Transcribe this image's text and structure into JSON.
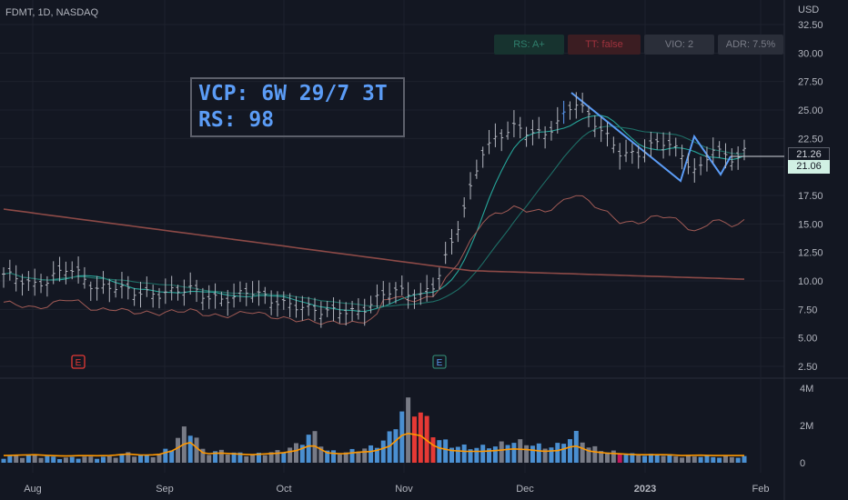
{
  "header": {
    "symbol": "FDMT, 1D, NASDAQ"
  },
  "badges": {
    "rs": "RS: A+",
    "tt": "TT: false",
    "vio": "VIO: 2",
    "adr": "ADR: 7.5%"
  },
  "annotation": {
    "line1": "VCP: 6W 29/7 3T",
    "line2": "RS: 98"
  },
  "price_axis": {
    "unit": "USD",
    "last_price": "21.26",
    "ma_value": "21.06"
  },
  "colors": {
    "background": "#131722",
    "up": "#b2b5be",
    "vol_up": "#2962ff",
    "vol_down": "#787b86",
    "ma_short": "#26a69a",
    "ma_long": "#8d4a47",
    "rs_line": "#a05a55",
    "trendline": "#5b9cf6",
    "volume_ma": "#ff9800",
    "hi_volume": "#e53935",
    "pocket": "#c2185b"
  },
  "chart_data": {
    "type": "candlestick",
    "x_ticks": [
      "Aug",
      "Sep",
      "Oct",
      "Nov",
      "Dec",
      "2023",
      "Feb"
    ],
    "y_ticks": [
      "32.50",
      "30.00",
      "27.50",
      "25.00",
      "22.50",
      "20.00",
      "17.50",
      "15.00",
      "12.50",
      "10.00",
      "7.50",
      "5.00",
      "2.50"
    ],
    "volume_ticks": [
      "4M",
      "2M",
      "0"
    ],
    "ylim": [
      0,
      33.6
    ],
    "volume_ylim": [
      0,
      4500000
    ],
    "earnings_markers": [
      {
        "x": "Aug 4",
        "label": "E"
      },
      {
        "x": "Nov 3",
        "label": "E"
      }
    ],
    "last_close": 21.26,
    "description_series": [
      {
        "name": "price_close_sampled",
        "values": [
          10.6,
          10.2,
          9.6,
          10.1,
          11.2,
          10.5,
          9.2,
          9.6,
          9.2,
          8.9,
          8.8,
          9.1,
          9.4,
          8.7,
          8.3,
          8.6,
          9.2,
          8.5,
          8.0,
          7.8,
          7.5,
          7.3,
          7.4,
          7.2,
          8.2,
          9.2,
          9.0,
          8.6,
          9.8,
          13.2,
          16.9,
          21.3,
          22.6,
          23.5,
          23.1,
          22.8,
          24.0,
          25.8,
          24.4,
          22.8,
          21.2,
          21.0,
          21.9,
          22.3,
          20.9,
          19.4,
          21.8,
          20.6,
          21.3
        ]
      },
      {
        "name": "volume_millions_sampled",
        "values": [
          0.3,
          0.35,
          0.4,
          0.3,
          0.25,
          0.3,
          0.28,
          0.3,
          0.5,
          0.35,
          0.4,
          0.9,
          2.0,
          0.5,
          0.6,
          0.5,
          0.4,
          0.5,
          0.6,
          0.9,
          1.6,
          0.6,
          0.5,
          0.7,
          0.8,
          1.4,
          3.0,
          2.7,
          1.3,
          0.9,
          0.8,
          0.8,
          0.9,
          1.1,
          1.0,
          0.8,
          0.9,
          1.5,
          0.8,
          0.6,
          0.5,
          0.4,
          0.4,
          0.4,
          0.3,
          0.35,
          0.3,
          0.3,
          0.3
        ]
      }
    ]
  }
}
